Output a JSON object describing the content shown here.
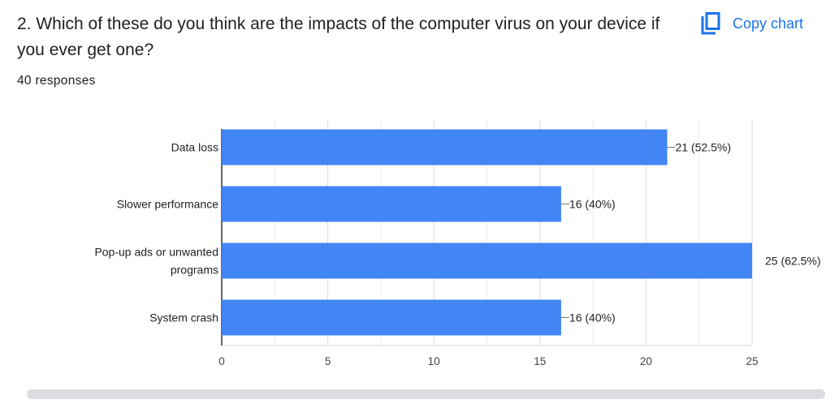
{
  "question": {
    "title": "2. Which of these do you think are the impacts of the computer virus on your device if you ever get one?",
    "responses": "40 responses"
  },
  "toolbar": {
    "copy_label": "Copy chart",
    "copy_icon": "copy-icon",
    "accent": "#1a73e8"
  },
  "chart_data": {
    "type": "bar",
    "orientation": "horizontal",
    "categories": [
      [
        "Data loss"
      ],
      [
        "Slower performance"
      ],
      [
        "Pop-up ads or unwanted",
        "programs"
      ],
      [
        "System crash"
      ]
    ],
    "values": [
      21,
      16,
      25,
      16
    ],
    "data_labels": [
      "21 (52.5%)",
      "16 (40%)",
      "25 (62.5%)",
      "16 (40%)"
    ],
    "xlim": [
      0,
      25
    ],
    "xticks": [
      0,
      5,
      10,
      15,
      20,
      25
    ],
    "bar_color": "#4285f4",
    "grid": true
  }
}
